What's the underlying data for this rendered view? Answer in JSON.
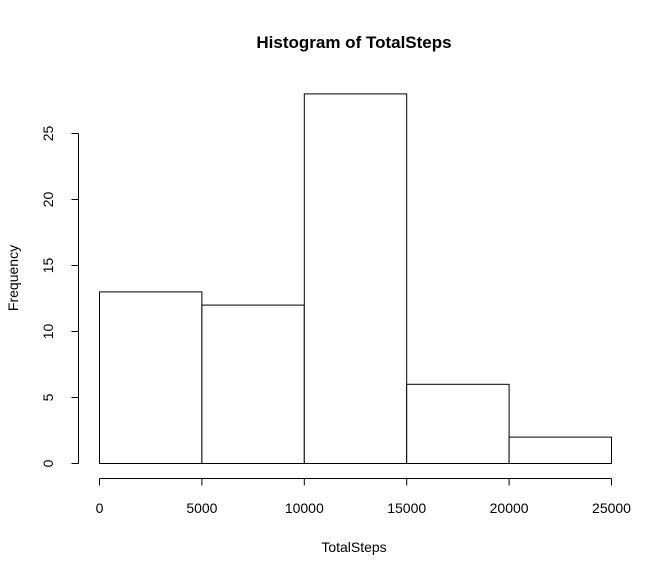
{
  "chart_data": {
    "type": "bar",
    "title": "Histogram of TotalSteps",
    "xlabel": "TotalSteps",
    "ylabel": "Frequency",
    "bins": [
      {
        "from": 0,
        "to": 5000,
        "count": 13
      },
      {
        "from": 5000,
        "to": 10000,
        "count": 12
      },
      {
        "from": 10000,
        "to": 15000,
        "count": 28
      },
      {
        "from": 15000,
        "to": 20000,
        "count": 6
      },
      {
        "from": 20000,
        "to": 25000,
        "count": 2
      }
    ],
    "xlim": [
      0,
      25000
    ],
    "ylim": [
      0,
      28
    ],
    "x_ticks": [
      0,
      5000,
      10000,
      15000,
      20000,
      25000
    ],
    "x_tick_labels": [
      "0",
      "5000",
      "10000",
      "15000",
      "20000",
      "25000"
    ],
    "y_ticks": [
      0,
      5,
      10,
      15,
      20,
      25
    ],
    "y_tick_labels": [
      "0",
      "5",
      "10",
      "15",
      "20",
      "25"
    ],
    "grid": false,
    "colors": {
      "bar_fill": "#ffffff",
      "bar_stroke": "#000000",
      "axis": "#000000",
      "background": "#ffffff"
    }
  }
}
